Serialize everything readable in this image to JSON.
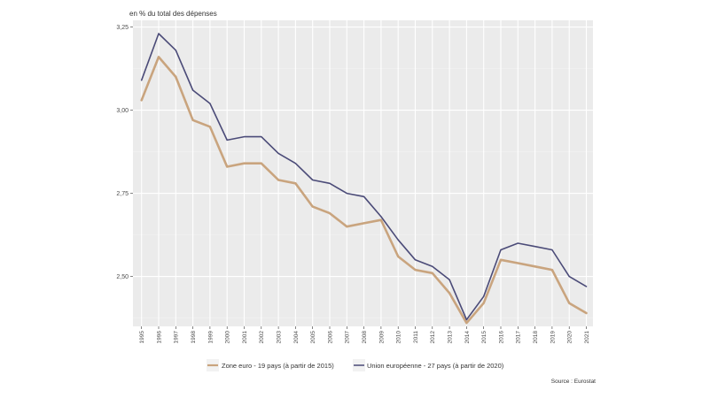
{
  "chart_data": {
    "type": "line",
    "title": "",
    "ylabel": "en % du total des dépenses",
    "xlabel": "",
    "categories": [
      "1995",
      "1996",
      "1997",
      "1998",
      "1999",
      "2000",
      "2001",
      "2002",
      "2003",
      "2004",
      "2005",
      "2006",
      "2007",
      "2008",
      "2009",
      "2010",
      "2011",
      "2012",
      "2013",
      "2014",
      "2015",
      "2016",
      "2017",
      "2018",
      "2019",
      "2020",
      "2021"
    ],
    "ylim": [
      2.35,
      3.27
    ],
    "yticks": [
      2.5,
      2.75,
      3.0,
      3.25
    ],
    "ytick_labels": [
      "2,50",
      "2,75",
      "3,00",
      "3,25"
    ],
    "grid": true,
    "legend_position": "bottom",
    "series": [
      {
        "name": "Zone euro - 19 pays (à partir de 2015)",
        "color": "#c9a47e",
        "values": [
          3.03,
          3.16,
          3.1,
          2.97,
          2.95,
          2.83,
          2.84,
          2.84,
          2.79,
          2.78,
          2.71,
          2.69,
          2.65,
          2.66,
          2.67,
          2.56,
          2.52,
          2.51,
          2.45,
          2.36,
          2.42,
          2.55,
          2.54,
          2.53,
          2.52,
          2.42,
          2.39
        ]
      },
      {
        "name": "Union européenne - 27 pays (à partir de 2020)",
        "color": "#4b4b78",
        "values": [
          3.09,
          3.23,
          3.18,
          3.06,
          3.02,
          2.91,
          2.92,
          2.92,
          2.87,
          2.84,
          2.79,
          2.78,
          2.75,
          2.74,
          2.68,
          2.61,
          2.55,
          2.53,
          2.49,
          2.37,
          2.44,
          2.58,
          2.6,
          2.59,
          2.58,
          2.5,
          2.47
        ]
      }
    ],
    "source": "Source : Eurostat"
  }
}
